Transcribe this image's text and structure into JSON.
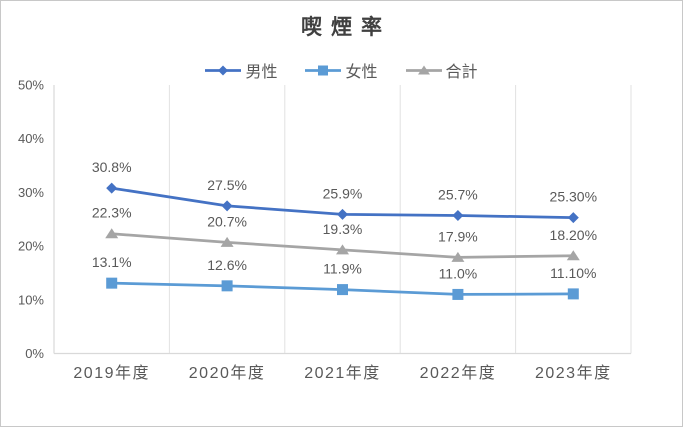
{
  "chart_data": {
    "type": "line",
    "title": "喫煙率",
    "categories": [
      "2019年度",
      "2020年度",
      "2021年度",
      "2022年度",
      "2023年度"
    ],
    "series": [
      {
        "name": "男性",
        "color": "#4472C4",
        "marker": "diamond",
        "values": [
          30.8,
          27.5,
          25.9,
          25.7,
          25.3
        ],
        "labels": [
          "30.8%",
          "27.5%",
          "25.9%",
          "25.7%",
          "25.30%"
        ]
      },
      {
        "name": "女性",
        "color": "#5B9BD5",
        "marker": "square",
        "values": [
          13.1,
          12.6,
          11.9,
          11.0,
          11.1
        ],
        "labels": [
          "13.1%",
          "12.6%",
          "11.9%",
          "11.0%",
          "11.10%"
        ]
      },
      {
        "name": "合計",
        "color": "#A5A5A5",
        "marker": "triangle",
        "values": [
          22.3,
          20.7,
          19.3,
          17.9,
          18.2
        ],
        "labels": [
          "22.3%",
          "20.7%",
          "19.3%",
          "17.9%",
          "18.20%"
        ]
      }
    ],
    "xlabel": "",
    "ylabel": "",
    "ylim": [
      0,
      50
    ],
    "y_ticks": [
      "0%",
      "10%",
      "20%",
      "30%",
      "40%",
      "50%"
    ],
    "grid": "vertical-category-boundaries-only",
    "legend_position": "top"
  },
  "colors": {
    "axis_line": "#d9d9d9",
    "gridline": "#e2e2e2",
    "title_text": "#404040",
    "label_text": "#595959",
    "frame_border": "#c8c8c8"
  }
}
